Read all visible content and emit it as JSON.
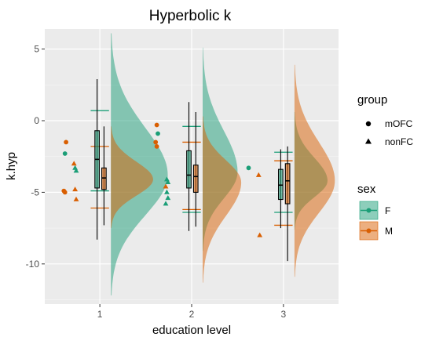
{
  "chart_data": {
    "type": "raincloud",
    "title": "Hyperbolic k",
    "xlabel": "education level",
    "ylabel": "k.hyp",
    "categories": [
      "1",
      "2",
      "3"
    ],
    "x_ticks": [
      "1",
      "2",
      "3"
    ],
    "y_ticks": [
      "5",
      "0",
      "-5",
      "-10"
    ],
    "ylim": [
      -12.8,
      6.4
    ],
    "grid": true,
    "colors": {
      "F": "#1b9e77",
      "M": "#d95f02",
      "panel": "#ebebeb",
      "gridline": "#ffffff"
    },
    "legends": {
      "group": {
        "title": "group",
        "entries": [
          {
            "label": "mOFC",
            "shape": "circle"
          },
          {
            "label": "nonFC",
            "shape": "triangle"
          }
        ]
      },
      "sex": {
        "title": "sex",
        "entries": [
          {
            "label": "F",
            "color": "#1b9e77"
          },
          {
            "label": "M",
            "color": "#d95f02"
          }
        ]
      }
    },
    "legend_position": "right",
    "boxplots": [
      {
        "education": 1,
        "sex": "F",
        "whisker_low": -8.3,
        "q1": -4.7,
        "median": -2.7,
        "q3": -0.7,
        "whisker_high": 2.9
      },
      {
        "education": 1,
        "sex": "M",
        "whisker_low": -7.3,
        "q1": -4.8,
        "median": -4.0,
        "q3": -3.3,
        "whisker_high": -0.4
      },
      {
        "education": 2,
        "sex": "F",
        "whisker_low": -7.7,
        "q1": -4.7,
        "median": -3.8,
        "q3": -2.1,
        "whisker_high": 1.3
      },
      {
        "education": 2,
        "sex": "M",
        "whisker_low": -7.4,
        "q1": -5.0,
        "median": -3.9,
        "q3": -3.1,
        "whisker_high": 0.6
      },
      {
        "education": 3,
        "sex": "F",
        "whisker_low": -7.5,
        "q1": -5.5,
        "median": -4.5,
        "q3": -3.4,
        "whisker_high": -2.0
      },
      {
        "education": 3,
        "sex": "M",
        "whisker_low": -9.8,
        "q1": -5.8,
        "median": -4.2,
        "q3": -3.0,
        "whisker_high": -1.8
      }
    ],
    "error_bars": [
      {
        "education": 1,
        "sex": "F",
        "low": -4.9,
        "high": 0.7
      },
      {
        "education": 1,
        "sex": "M",
        "low": -6.1,
        "high": -1.8
      },
      {
        "education": 2,
        "sex": "F",
        "low": -6.4,
        "high": -0.4
      },
      {
        "education": 2,
        "sex": "M",
        "low": -6.2,
        "high": -1.5
      },
      {
        "education": 3,
        "sex": "F",
        "low": -6.4,
        "high": -2.2
      },
      {
        "education": 3,
        "sex": "M",
        "low": -7.3,
        "high": -2.8
      }
    ],
    "densities": [
      {
        "education": 1,
        "sex": "F",
        "peak_y": -3.8,
        "peak_width": 0.62,
        "min_y": -12.2,
        "max_y": 6.1
      },
      {
        "education": 1,
        "sex": "M",
        "peak_y": -4.1,
        "peak_width": 0.46,
        "min_y": -7.5,
        "max_y": -0.4
      },
      {
        "education": 2,
        "sex": "F",
        "peak_y": -3.6,
        "peak_width": 0.38,
        "min_y": -9.1,
        "max_y": 5.1
      },
      {
        "education": 2,
        "sex": "M",
        "peak_y": -4.3,
        "peak_width": 0.42,
        "min_y": -11.3,
        "max_y": 0.3
      },
      {
        "education": 3,
        "sex": "F",
        "peak_y": -4.2,
        "peak_width": 0.36,
        "min_y": -7.6,
        "max_y": 0.6
      },
      {
        "education": 3,
        "sex": "M",
        "peak_y": -4.2,
        "peak_width": 0.44,
        "min_y": -10.9,
        "max_y": 3.9
      }
    ],
    "points": [
      {
        "education": 1,
        "sex": "F",
        "group": "mOFC",
        "y": -2.3
      },
      {
        "education": 1,
        "sex": "M",
        "group": "mOFC",
        "y": -1.5
      },
      {
        "education": 1,
        "sex": "M",
        "group": "mOFC",
        "y": -4.9
      },
      {
        "education": 1,
        "sex": "M",
        "group": "mOFC",
        "y": -5.0
      },
      {
        "education": 1,
        "sex": "F",
        "group": "nonFC",
        "y": -3.3
      },
      {
        "education": 1,
        "sex": "F",
        "group": "nonFC",
        "y": -3.5
      },
      {
        "education": 1,
        "sex": "M",
        "group": "nonFC",
        "y": -3.0
      },
      {
        "education": 1,
        "sex": "M",
        "group": "nonFC",
        "y": -4.8
      },
      {
        "education": 1,
        "sex": "M",
        "group": "nonFC",
        "y": -5.5
      },
      {
        "education": 2,
        "sex": "M",
        "group": "mOFC",
        "y": -0.3
      },
      {
        "education": 2,
        "sex": "F",
        "group": "mOFC",
        "y": -0.9
      },
      {
        "education": 2,
        "sex": "M",
        "group": "mOFC",
        "y": -1.5
      },
      {
        "education": 2,
        "sex": "M",
        "group": "mOFC",
        "y": -1.8
      },
      {
        "education": 2,
        "sex": "F",
        "group": "nonFC",
        "y": -4.1
      },
      {
        "education": 2,
        "sex": "F",
        "group": "nonFC",
        "y": -4.3
      },
      {
        "education": 2,
        "sex": "M",
        "group": "nonFC",
        "y": -4.6
      },
      {
        "education": 2,
        "sex": "F",
        "group": "nonFC",
        "y": -5.0
      },
      {
        "education": 2,
        "sex": "F",
        "group": "nonFC",
        "y": -5.4
      },
      {
        "education": 2,
        "sex": "F",
        "group": "nonFC",
        "y": -5.8
      },
      {
        "education": 3,
        "sex": "F",
        "group": "mOFC",
        "y": -3.3
      },
      {
        "education": 3,
        "sex": "M",
        "group": "nonFC",
        "y": -3.8
      },
      {
        "education": 3,
        "sex": "M",
        "group": "nonFC",
        "y": -8.0
      }
    ]
  }
}
